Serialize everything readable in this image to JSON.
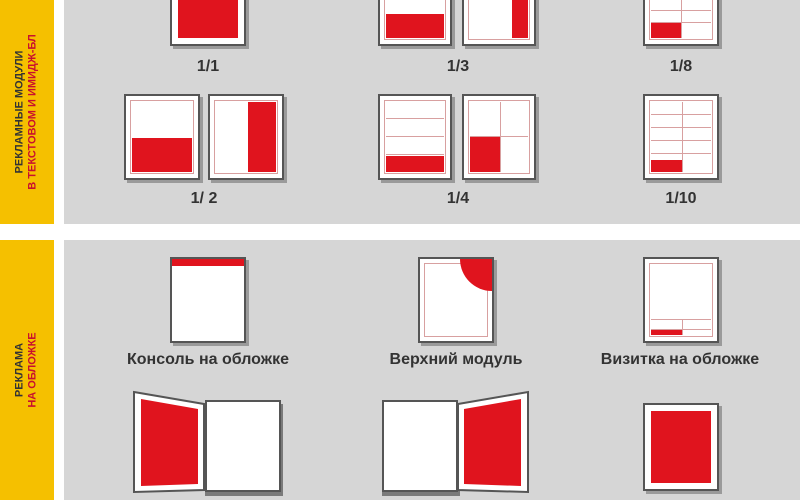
{
  "section_modules": {
    "label_line1": "РЕКЛАМНЫЕ МОДУЛИ",
    "label_line2": "В ТЕКСТОВОМ И ИМИДЖ-БЛ",
    "captions": [
      "1/1",
      "1/3",
      "1/8",
      "1/ 2",
      "1/4",
      "1/10"
    ]
  },
  "section_cover": {
    "label_line1": "РЕКЛАМА",
    "label_line2": "НА ОБЛОЖКЕ",
    "captions": [
      "Консоль на обложке",
      "Верхний модуль",
      "Визитка на обложке"
    ]
  },
  "colors": {
    "accent_red": "#e0141e",
    "band_yellow": "#f5c000",
    "panel_gray": "#d6d6d6"
  }
}
